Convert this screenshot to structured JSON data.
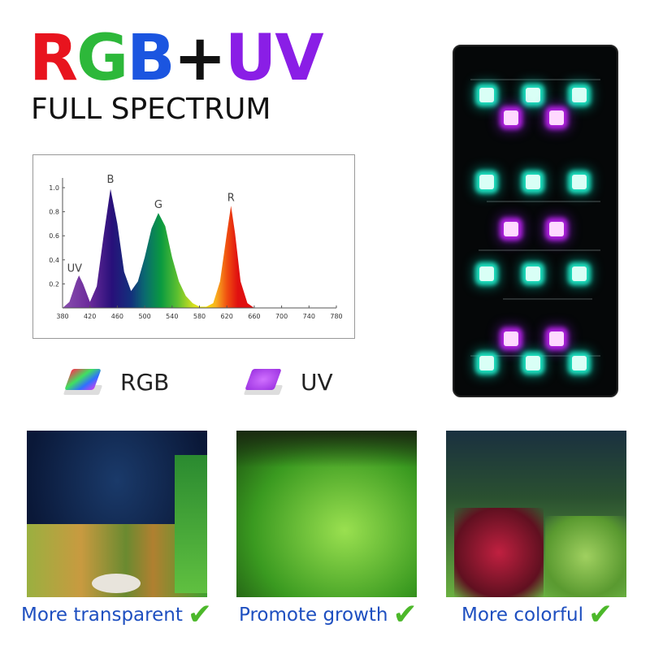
{
  "header": {
    "title_parts": [
      {
        "text": "R",
        "color": "#e8141e"
      },
      {
        "text": "G",
        "color": "#2db83a"
      },
      {
        "text": "B",
        "color": "#1b55e0"
      },
      {
        "text": "+",
        "color": "#111111"
      },
      {
        "text": "UV",
        "color": "#8a1ee6"
      }
    ],
    "subtitle": "FULL SPECTRUM"
  },
  "chart_data": {
    "type": "area",
    "xlim": [
      380,
      780
    ],
    "ylim": [
      0,
      1.05
    ],
    "x_ticks": [
      "380",
      "420",
      "460",
      "500",
      "540",
      "580",
      "620",
      "660",
      "700",
      "740",
      "780"
    ],
    "y_ticks": [
      "0.2",
      "0.4",
      "0.6",
      "0.8",
      "1.0"
    ],
    "grid": false,
    "x": [
      380,
      390,
      400,
      404,
      410,
      420,
      430,
      440,
      450,
      460,
      470,
      480,
      490,
      500,
      510,
      520,
      530,
      540,
      550,
      560,
      570,
      580,
      590,
      600,
      610,
      620,
      626,
      632,
      640,
      650,
      660,
      780
    ],
    "y": [
      0.0,
      0.05,
      0.22,
      0.27,
      0.2,
      0.05,
      0.18,
      0.6,
      0.99,
      0.7,
      0.3,
      0.14,
      0.22,
      0.42,
      0.66,
      0.79,
      0.68,
      0.42,
      0.22,
      0.1,
      0.04,
      0.01,
      0.01,
      0.04,
      0.22,
      0.62,
      0.85,
      0.62,
      0.22,
      0.04,
      0.0,
      0.0
    ],
    "annotations": [
      {
        "text": "UV",
        "x": 400,
        "y": 0.3
      },
      {
        "text": "B",
        "x": 450,
        "y": 1.04
      },
      {
        "text": "G",
        "x": 520,
        "y": 0.83
      },
      {
        "text": "R",
        "x": 626,
        "y": 0.89
      }
    ]
  },
  "legend": {
    "rgb": "RGB",
    "uv": "UV"
  },
  "features": [
    {
      "caption": "More transparent"
    },
    {
      "caption": "Promote growth"
    },
    {
      "caption": "More colorful"
    }
  ],
  "icons": {
    "check": "checkmark-icon"
  }
}
